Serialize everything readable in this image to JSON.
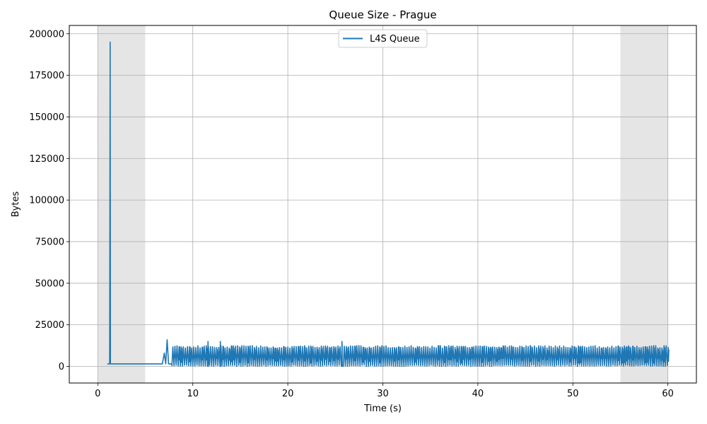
{
  "chart_data": {
    "type": "line",
    "title": "Queue Size - Prague",
    "xlabel": "Time (s)",
    "ylabel": "Bytes",
    "xlim": [
      -3,
      63
    ],
    "ylim": [
      -10000,
      205000
    ],
    "xticks": [
      0,
      10,
      20,
      30,
      40,
      50,
      60
    ],
    "yticks": [
      0,
      25000,
      50000,
      75000,
      100000,
      125000,
      150000,
      175000,
      200000
    ],
    "grid": true,
    "legend_position": "upper center",
    "shaded_regions": [
      {
        "x_start": 0,
        "x_end": 5
      },
      {
        "x_start": 55,
        "x_end": 60
      }
    ],
    "series": [
      {
        "name": "L4S Queue",
        "color": "#1f77b4",
        "segments": {
          "initial": [
            [
              1.0,
              1500
            ],
            [
              1.25,
              1500
            ],
            [
              1.3,
              195000
            ],
            [
              1.33,
              1500
            ],
            [
              6.8,
              1500
            ],
            [
              7.0,
              8000
            ],
            [
              7.15,
              1500
            ],
            [
              7.3,
              16000
            ],
            [
              7.45,
              1500
            ],
            [
              7.8,
              1500
            ]
          ],
          "oscillation": {
            "x_start": 7.8,
            "x_end": 60.0,
            "low": 0,
            "high": 12500,
            "period": 0.22,
            "occasional_peak": 15000
          }
        }
      }
    ]
  }
}
